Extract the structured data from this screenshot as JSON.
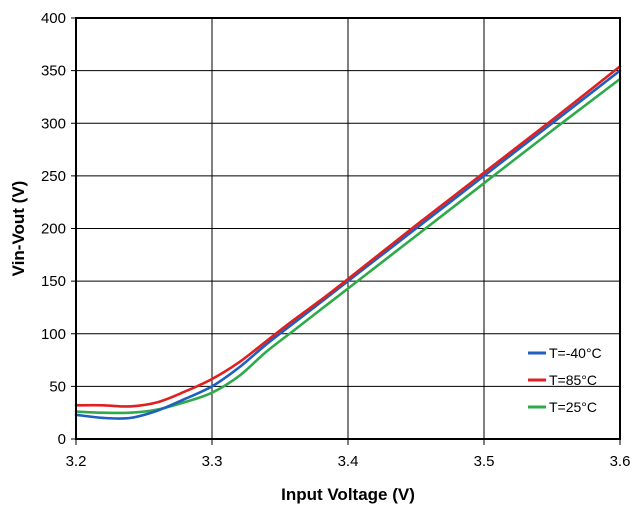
{
  "chart_data": {
    "type": "line",
    "title": "",
    "xlabel": "Input Voltage (V)",
    "ylabel": "Vin-Vout (V)",
    "xlim": [
      3.2,
      3.6
    ],
    "ylim": [
      0,
      400
    ],
    "xticks": [
      3.2,
      3.3,
      3.4,
      3.5,
      3.6
    ],
    "xtick_labels": [
      "3.2",
      "3.3",
      "3.4",
      "3.5",
      "3.6"
    ],
    "yticks": [
      0,
      50,
      100,
      150,
      200,
      250,
      300,
      350,
      400
    ],
    "ytick_labels": [
      "0",
      "50",
      "100",
      "150",
      "200",
      "250",
      "300",
      "350",
      "400"
    ],
    "grid": true,
    "legend_position": "bottom-right",
    "series": [
      {
        "name": "T=-40°C",
        "color": "#1f5fbf",
        "x": [
          3.2,
          3.22,
          3.24,
          3.26,
          3.28,
          3.3,
          3.32,
          3.34,
          3.36,
          3.38,
          3.4,
          3.45,
          3.5,
          3.55,
          3.6
        ],
        "y": [
          23,
          20,
          20,
          27,
          38,
          50,
          68,
          90,
          110,
          130,
          150,
          200,
          250,
          300,
          350
        ]
      },
      {
        "name": "T=85°C",
        "color": "#e02020",
        "x": [
          3.2,
          3.22,
          3.24,
          3.26,
          3.28,
          3.3,
          3.32,
          3.34,
          3.36,
          3.38,
          3.4,
          3.45,
          3.5,
          3.55,
          3.6
        ],
        "y": [
          32,
          32,
          31,
          35,
          45,
          57,
          73,
          93,
          113,
          132,
          152,
          203,
          253,
          303,
          354
        ]
      },
      {
        "name": "T=25°C",
        "color": "#2eaa4a",
        "x": [
          3.2,
          3.22,
          3.24,
          3.26,
          3.28,
          3.3,
          3.32,
          3.34,
          3.36,
          3.38,
          3.4,
          3.45,
          3.5,
          3.55,
          3.6
        ],
        "y": [
          26,
          25,
          25,
          28,
          35,
          44,
          60,
          83,
          103,
          123,
          143,
          193,
          243,
          293,
          342
        ]
      }
    ]
  }
}
